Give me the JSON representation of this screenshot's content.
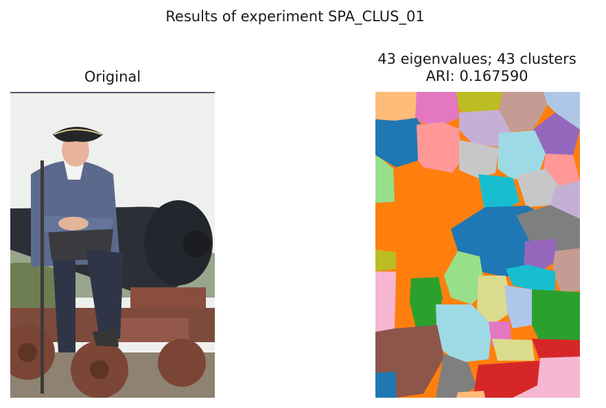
{
  "figure": {
    "suptitle": "Results of experiment SPA_CLUS_01"
  },
  "chart_data": [
    {
      "type": "image",
      "title": "Original",
      "axis": "off",
      "content": "photograph of a man in an 18th-century soldier uniform and tricorn hat sitting beside a black cannon on a wooden carriage"
    },
    {
      "type": "heatmap",
      "title_line1": "43 eigenvalues; 43 clusters",
      "title_line2": "ARI: 0.167590",
      "eigenvalues": 43,
      "clusters": 43,
      "ari": 0.16759,
      "axis": "off",
      "colormap": "tab20",
      "cluster_colors": [
        "#1f77b4",
        "#aec7e8",
        "#ff7f0e",
        "#ffbb78",
        "#2ca02c",
        "#98df8a",
        "#d62728",
        "#ff9896",
        "#9467bd",
        "#c5b0d5",
        "#8c564b",
        "#c49c94",
        "#e377c2",
        "#f7b6d2",
        "#7f7f7f",
        "#c7c7c7",
        "#bcbd22",
        "#dbdb8d",
        "#17becf",
        "#9edae5"
      ]
    }
  ]
}
